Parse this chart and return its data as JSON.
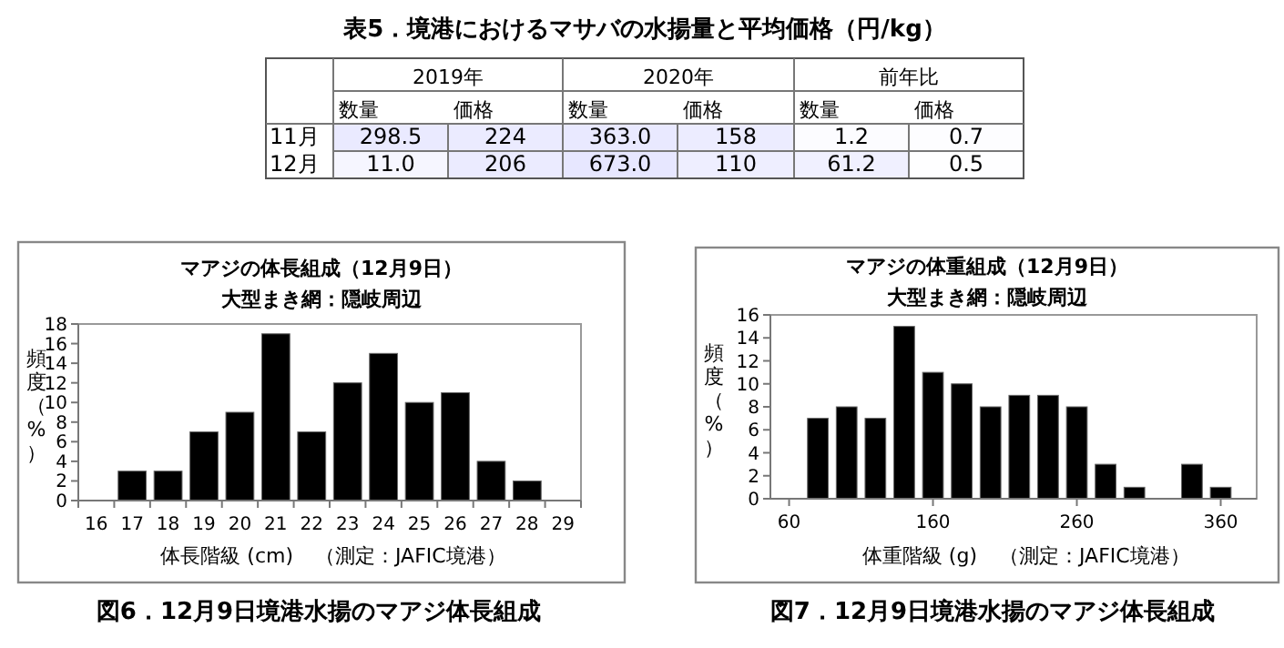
{
  "chart_data": [
    {
      "type": "heatmap",
      "title": "表5．境港におけるマサバの水揚量と平均価格（円/kg）",
      "categories": [
        "数量",
        "価格",
        "数量",
        "価格",
        "数量",
        "価格"
      ],
      "y_categories": [
        "11月",
        "12月"
      ],
      "cells": [
        [
          298.5,
          224,
          363.0,
          158,
          1.2,
          0.7
        ],
        [
          11.0,
          206,
          673.0,
          110,
          61.2,
          0.5
        ]
      ],
      "cell_labels": [
        [
          "298.5",
          "224",
          "363.0",
          "158",
          "1.2",
          "0.7"
        ],
        [
          "11.0",
          "206",
          "673.0",
          "110",
          "61.2",
          "0.5"
        ]
      ],
      "annotations": [
        "2019年",
        "2020年",
        "前年比"
      ]
    },
    {
      "type": "bar",
      "title": "マアジの体長組成（12月9日）",
      "subtitle": "大型まき網：隠岐周辺",
      "xlabel": "体長階級 (cm)",
      "ylabel": "頻度（%）",
      "categories": [
        "16",
        "17",
        "18",
        "19",
        "20",
        "21",
        "22",
        "23",
        "24",
        "25",
        "26",
        "27",
        "28",
        "29"
      ],
      "values": [
        0,
        3,
        3,
        7,
        9,
        17,
        7,
        12,
        15,
        10,
        11,
        4,
        2,
        0
      ],
      "color": "#000000",
      "ylim": [
        0,
        18
      ],
      "yticks": [
        0,
        2,
        4,
        6,
        8,
        10,
        12,
        14,
        16,
        18
      ],
      "grid": false,
      "legend": false,
      "annotations": [
        "（測定：JAFIC境港）",
        "図6．12月9日境港水揚のマアジ体長組成"
      ]
    },
    {
      "type": "bar",
      "title": "マアジの体重組成（12月9日）",
      "subtitle": "大型まき網：隠岐周辺",
      "xlabel": "体重階級 (g)",
      "ylabel": "頻度（%）",
      "x": [
        80,
        100,
        120,
        140,
        160,
        180,
        200,
        220,
        240,
        260,
        280,
        300,
        320,
        340,
        360
      ],
      "values": [
        7,
        8,
        7,
        15,
        11,
        10,
        8,
        9,
        9,
        8,
        3,
        1,
        0,
        3,
        1
      ],
      "color": "#000000",
      "xlim": [
        47,
        385
      ],
      "xticks": [
        60,
        160,
        260,
        360
      ],
      "ylim": [
        0,
        16
      ],
      "yticks": [
        0,
        2,
        4,
        6,
        8,
        10,
        12,
        14,
        16
      ],
      "grid": false,
      "legend": false,
      "annotations": [
        "（測定：JAFIC境港）",
        "図7．12月9日境港水揚のマアジ体長組成"
      ]
    }
  ]
}
